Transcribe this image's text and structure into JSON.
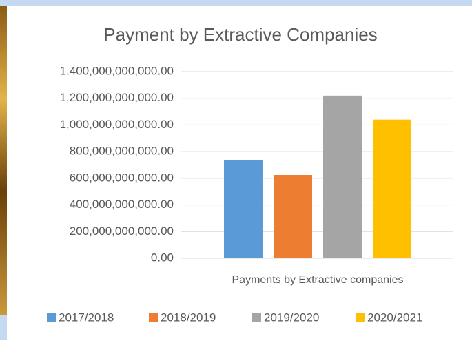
{
  "chart_data": {
    "type": "bar",
    "title": "Payment by Extractive Companies",
    "categories": [
      "Payments by  Extractive companies"
    ],
    "series": [
      {
        "name": "2017/2018",
        "color": "#5b9bd5",
        "values": [
          735000000000
        ]
      },
      {
        "name": "2018/2019",
        "color": "#ed7d31",
        "values": [
          625000000000
        ]
      },
      {
        "name": "2019/2020",
        "color": "#a5a5a5",
        "values": [
          1220000000000
        ]
      },
      {
        "name": "2020/2021",
        "color": "#ffc000",
        "values": [
          1040000000000
        ]
      }
    ],
    "ylim": [
      0,
      1400000000000
    ],
    "yticks": [
      {
        "value": 0,
        "label": "0.00"
      },
      {
        "value": 200000000000,
        "label": "200,000,000,000.00"
      },
      {
        "value": 400000000000,
        "label": "400,000,000,000.00"
      },
      {
        "value": 600000000000,
        "label": "600,000,000,000.00"
      },
      {
        "value": 800000000000,
        "label": "800,000,000,000.00"
      },
      {
        "value": 1000000000000,
        "label": "1,000,000,000,000.00"
      },
      {
        "value": 1200000000000,
        "label": "1,200,000,000,000.00"
      },
      {
        "value": 1400000000000,
        "label": "1,400,000,000,000.00"
      }
    ],
    "grid": true,
    "legend": "bottom"
  }
}
